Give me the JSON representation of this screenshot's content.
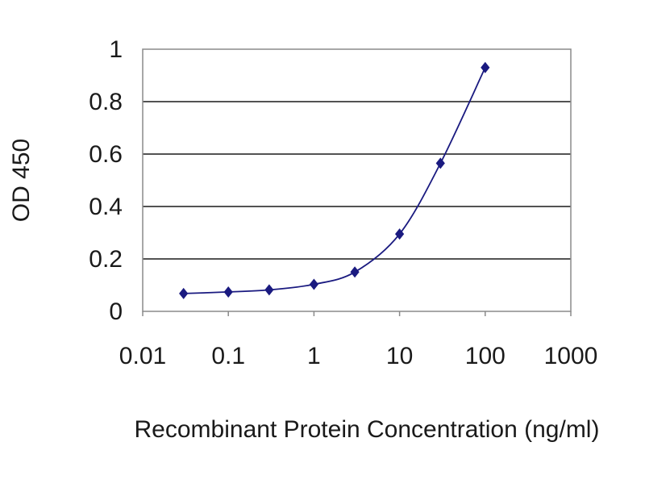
{
  "chart_data": {
    "type": "line",
    "title": "",
    "xlabel": "Recombinant Protein Concentration (ng/ml)",
    "ylabel": "OD 450",
    "x_scale": "log",
    "xlim": [
      0.01,
      1000
    ],
    "ylim": [
      0,
      1
    ],
    "x_ticks": [
      0.01,
      0.1,
      1,
      10,
      100,
      1000
    ],
    "x_tick_labels": [
      "0.01",
      "0.1",
      "1",
      "10",
      "100",
      "1000"
    ],
    "y_ticks": [
      0,
      0.2,
      0.4,
      0.6,
      0.8,
      1
    ],
    "y_tick_labels": [
      "0",
      "0.2",
      "0.4",
      "0.6",
      "0.8",
      "1"
    ],
    "grid": "horizontal",
    "legend": "none",
    "series": [
      {
        "x": [
          0.03,
          0.1,
          0.3,
          1,
          3,
          10,
          30,
          100
        ],
        "y": [
          0.068,
          0.074,
          0.082,
          0.103,
          0.15,
          0.295,
          0.565,
          0.93
        ],
        "color": "#1a1a80",
        "marker": "diamond"
      }
    ]
  }
}
